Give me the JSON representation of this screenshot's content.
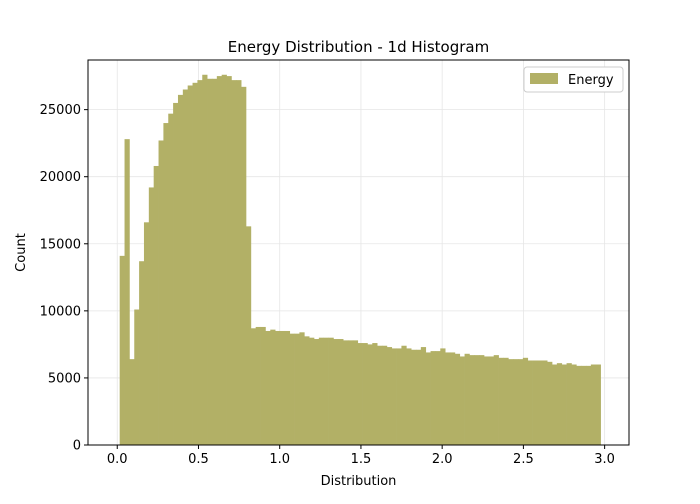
{
  "chart_data": {
    "type": "bar",
    "title": "Energy Distribution - 1d Histogram",
    "xlabel": "Distribution",
    "ylabel": "Count",
    "xlim": [
      -0.18,
      3.15
    ],
    "ylim": [
      0,
      28700
    ],
    "xticks": [
      0.0,
      0.5,
      1.0,
      1.5,
      2.0,
      2.5,
      3.0
    ],
    "xtick_labels": [
      "0.0",
      "0.5",
      "1.0",
      "1.5",
      "2.0",
      "2.5",
      "3.0"
    ],
    "yticks": [
      0,
      5000,
      10000,
      15000,
      20000,
      25000
    ],
    "ytick_labels": [
      "0",
      "5000",
      "10000",
      "15000",
      "20000",
      "25000"
    ],
    "grid": true,
    "legend_position": "top-right",
    "series": [
      {
        "name": "Energy",
        "color": "#b2b066",
        "bin_start": 0.015,
        "bin_width": 0.0299,
        "values": [
          14100,
          22800,
          6400,
          10100,
          13700,
          16600,
          19200,
          20800,
          22700,
          24000,
          24700,
          25500,
          26100,
          26500,
          26800,
          27000,
          27200,
          27600,
          27300,
          27300,
          27500,
          27600,
          27500,
          27200,
          27200,
          26700,
          16300,
          8700,
          8800,
          8800,
          8500,
          8600,
          8500,
          8500,
          8500,
          8300,
          8300,
          8400,
          8100,
          8000,
          7900,
          8000,
          8000,
          8000,
          7900,
          7900,
          7800,
          7800,
          7800,
          7600,
          7600,
          7500,
          7600,
          7400,
          7400,
          7300,
          7200,
          7200,
          7400,
          7200,
          7100,
          7100,
          7300,
          6900,
          7000,
          7000,
          7200,
          6900,
          6900,
          6800,
          6600,
          6800,
          6700,
          6700,
          6700,
          6600,
          6600,
          6700,
          6500,
          6500,
          6400,
          6400,
          6400,
          6500,
          6300,
          6300,
          6300,
          6300,
          6200,
          6000,
          6100,
          6000,
          6100,
          6000,
          5900,
          5900,
          5900,
          6000,
          6000
        ]
      }
    ]
  }
}
